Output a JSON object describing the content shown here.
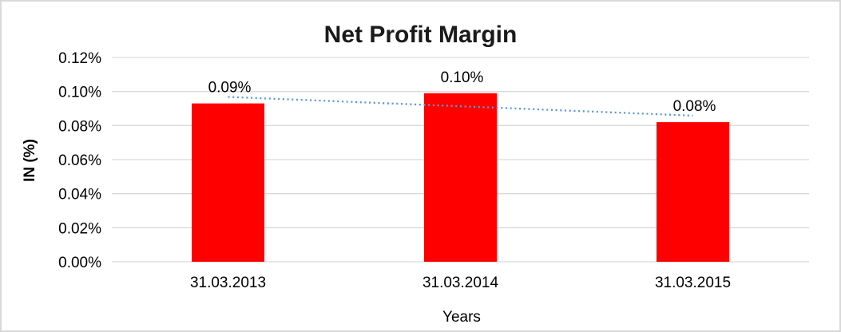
{
  "chart_data": {
    "type": "bar",
    "title": "Net Profit Margin",
    "xlabel": "Years",
    "ylabel": "IN (%)",
    "categories": [
      "31.03.2013",
      "31.03.2014",
      "31.03.2015"
    ],
    "values": [
      0.093,
      0.099,
      0.082
    ],
    "data_labels": [
      "0.09%",
      "0.10%",
      "0.08%"
    ],
    "ylim": [
      0,
      0.12
    ],
    "ytick_step": 0.02,
    "ytick_labels": [
      "0.00%",
      "0.02%",
      "0.04%",
      "0.06%",
      "0.08%",
      "0.10%",
      "0.12%"
    ],
    "grid": true,
    "legend_position": "none",
    "bar_color": "#FF0000",
    "gridline_color": "#D9D9D9",
    "text_color": "#000000",
    "title_color": "#1A1A1A",
    "frame_border_color": "#D9D9D9",
    "trendline": {
      "type": "linear",
      "style": "dotted",
      "color": "#5B9BD5"
    }
  }
}
